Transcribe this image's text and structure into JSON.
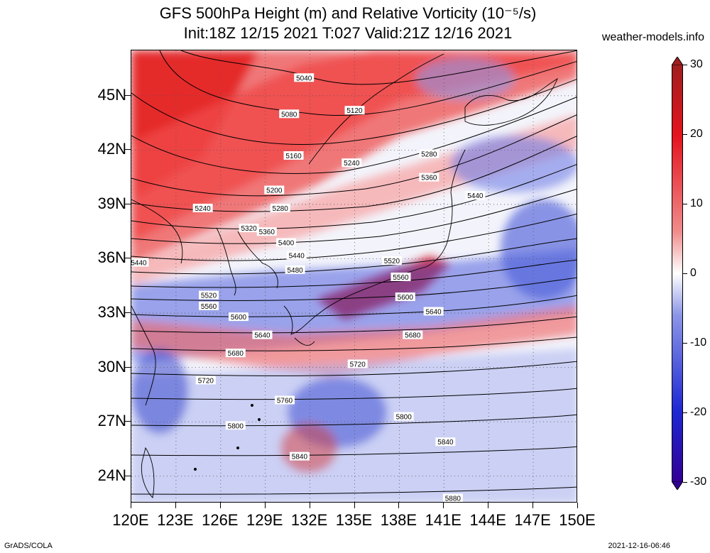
{
  "header": {
    "title_line1": "GFS 500hPa Height (m) and Relative Vorticity (10⁻⁵/s)",
    "title_line2": "Init:18Z 12/15 2021 T:027 Valid:21Z 12/16 2021",
    "brand": "weather-models.info"
  },
  "map": {
    "lon_range": [
      120,
      150
    ],
    "lat_range": [
      22.5,
      47.5
    ],
    "lat_labels": [
      "45N",
      "42N",
      "39N",
      "36N",
      "33N",
      "30N",
      "27N",
      "24N"
    ],
    "lat_values": [
      45,
      42,
      39,
      36,
      33,
      30,
      27,
      24
    ],
    "lon_labels": [
      "120E",
      "123E",
      "126E",
      "129E",
      "132E",
      "135E",
      "138E",
      "141E",
      "144E",
      "147E",
      "150E"
    ],
    "lon_values": [
      120,
      123,
      126,
      129,
      132,
      135,
      138,
      141,
      144,
      147,
      150
    ],
    "contour_labels": [
      {
        "text": "5040",
        "lon": 131.6,
        "lat": 46.0
      },
      {
        "text": "5080",
        "lon": 130.6,
        "lat": 44.0
      },
      {
        "text": "5120",
        "lon": 135.0,
        "lat": 44.2
      },
      {
        "text": "5160",
        "lon": 130.9,
        "lat": 41.7
      },
      {
        "text": "5240",
        "lon": 134.8,
        "lat": 41.3
      },
      {
        "text": "5280",
        "lon": 140.0,
        "lat": 41.8
      },
      {
        "text": "5200",
        "lon": 129.6,
        "lat": 39.8
      },
      {
        "text": "5240",
        "lon": 124.8,
        "lat": 38.8
      },
      {
        "text": "5280",
        "lon": 130.0,
        "lat": 38.8
      },
      {
        "text": "5360",
        "lon": 140.0,
        "lat": 40.5
      },
      {
        "text": "5440",
        "lon": 143.1,
        "lat": 39.5
      },
      {
        "text": "5320",
        "lon": 127.9,
        "lat": 37.7
      },
      {
        "text": "5360",
        "lon": 129.1,
        "lat": 37.5
      },
      {
        "text": "5400",
        "lon": 130.4,
        "lat": 36.9
      },
      {
        "text": "5440",
        "lon": 131.1,
        "lat": 36.2
      },
      {
        "text": "5480",
        "lon": 131.0,
        "lat": 35.4
      },
      {
        "text": "5440",
        "lon": 120.5,
        "lat": 35.8
      },
      {
        "text": "5520",
        "lon": 137.5,
        "lat": 35.9
      },
      {
        "text": "5560",
        "lon": 138.1,
        "lat": 35.0
      },
      {
        "text": "5600",
        "lon": 138.4,
        "lat": 33.9
      },
      {
        "text": "5520",
        "lon": 125.2,
        "lat": 34.0
      },
      {
        "text": "5560",
        "lon": 125.2,
        "lat": 33.4
      },
      {
        "text": "5600",
        "lon": 127.2,
        "lat": 32.8
      },
      {
        "text": "5640",
        "lon": 140.3,
        "lat": 33.1
      },
      {
        "text": "5640",
        "lon": 128.8,
        "lat": 31.8
      },
      {
        "text": "5680",
        "lon": 138.9,
        "lat": 31.8
      },
      {
        "text": "5680",
        "lon": 127.0,
        "lat": 30.8
      },
      {
        "text": "5720",
        "lon": 135.2,
        "lat": 30.2
      },
      {
        "text": "5720",
        "lon": 125.0,
        "lat": 29.3
      },
      {
        "text": "5760",
        "lon": 130.3,
        "lat": 28.2
      },
      {
        "text": "5800",
        "lon": 127.0,
        "lat": 26.8
      },
      {
        "text": "5800",
        "lon": 138.3,
        "lat": 27.3
      },
      {
        "text": "5840",
        "lon": 131.3,
        "lat": 25.1
      },
      {
        "text": "5840",
        "lon": 141.1,
        "lat": 25.9
      },
      {
        "text": "5880",
        "lon": 141.6,
        "lat": 22.8
      }
    ]
  },
  "colorbar": {
    "labels": [
      "30",
      "20",
      "10",
      "0",
      "-10",
      "-20",
      "-30"
    ],
    "values": [
      30,
      20,
      10,
      0,
      -10,
      -20,
      -30
    ],
    "colors": {
      "max": "#a01e1e",
      "pos_strong": "#e4141e",
      "pos_light": "#f08c8c",
      "zero": "#ffffff",
      "neg_light": "#8c96e6",
      "neg_strong": "#1e28d2",
      "min": "#320096"
    }
  },
  "footer": {
    "left": "GrADS/COLA",
    "right": "2021-12-16-06:46"
  }
}
